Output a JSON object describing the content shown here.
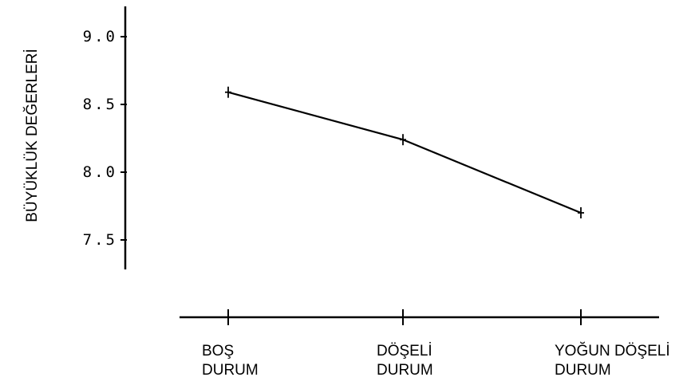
{
  "chart_data": {
    "type": "line",
    "categories": [
      [
        "BOŞ",
        "DURUM"
      ],
      [
        "DÖŞELİ",
        "DURUM"
      ],
      [
        "YOĞUN  DÖŞELİ",
        "DURUM"
      ]
    ],
    "series": [
      {
        "values": [
          8.59,
          8.24,
          7.7
        ]
      }
    ],
    "ylabel": "BÜYÜKLÜK  DEĞERLERİ",
    "xlabel": "",
    "ylim": [
      7.3,
      9.2
    ],
    "yticks": [
      "9.0",
      "8.5",
      "8.0",
      "7.5"
    ],
    "ytick_values": [
      9.0,
      8.5,
      8.0,
      7.5
    ],
    "grid": false,
    "error_bars": true
  }
}
